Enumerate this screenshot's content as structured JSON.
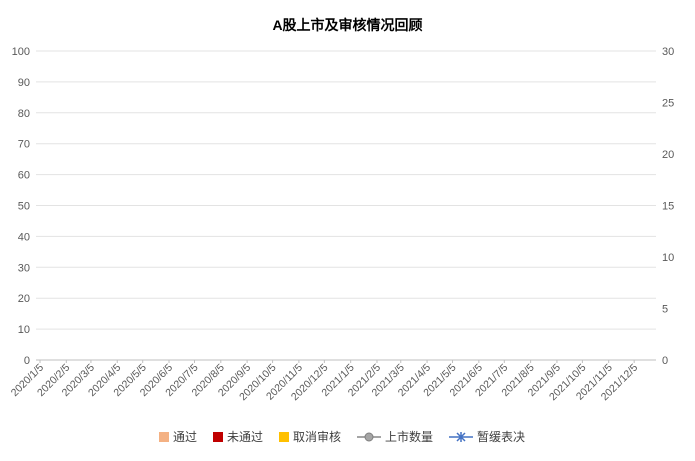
{
  "chart_data": {
    "type": "bar",
    "title": "A股上市及审核情况回顾",
    "xlabel": "",
    "ylabel": "",
    "y_left_ticks": [
      "0",
      "10",
      "20",
      "30",
      "40",
      "50",
      "60",
      "70",
      "80",
      "90",
      "100"
    ],
    "y_left_lim": [
      0,
      100
    ],
    "y_right_ticks": [
      "0",
      "5",
      "10",
      "15",
      "20",
      "25",
      "30"
    ],
    "y_right_lim": [
      0,
      30
    ],
    "x_range": [
      "2020/1/5",
      "2021/12/26"
    ],
    "x_ticks": [
      "2020/1/5",
      "2020/2/5",
      "2020/3/5",
      "2020/4/5",
      "2020/5/5",
      "2020/6/5",
      "2020/7/5",
      "2020/8/5",
      "2020/9/5",
      "2020/10/5",
      "2020/11/5",
      "2020/12/5",
      "2021/1/5",
      "2021/2/5",
      "2021/3/5",
      "2021/4/5",
      "2021/5/5",
      "2021/6/5",
      "2021/7/5",
      "2021/8/5",
      "2021/9/5",
      "2021/10/5",
      "2021/11/5",
      "2021/12/5"
    ],
    "gridlines": true,
    "legend_position": "bottom",
    "series": [
      {
        "name": "通过",
        "kind": "stacked-bar",
        "axis": "left",
        "color": "#F4B183"
      },
      {
        "name": "未通过",
        "kind": "stacked-bar",
        "axis": "left",
        "color": "#C00000"
      },
      {
        "name": "取消审核",
        "kind": "stacked-bar",
        "axis": "left",
        "color": "#FFC000"
      },
      {
        "name": "上市数量",
        "kind": "line",
        "axis": "right",
        "color": "#A5A5A5"
      },
      {
        "name": "暂缓表决",
        "kind": "scatter",
        "axis": "right",
        "color": "#4472C4"
      }
    ]
  }
}
